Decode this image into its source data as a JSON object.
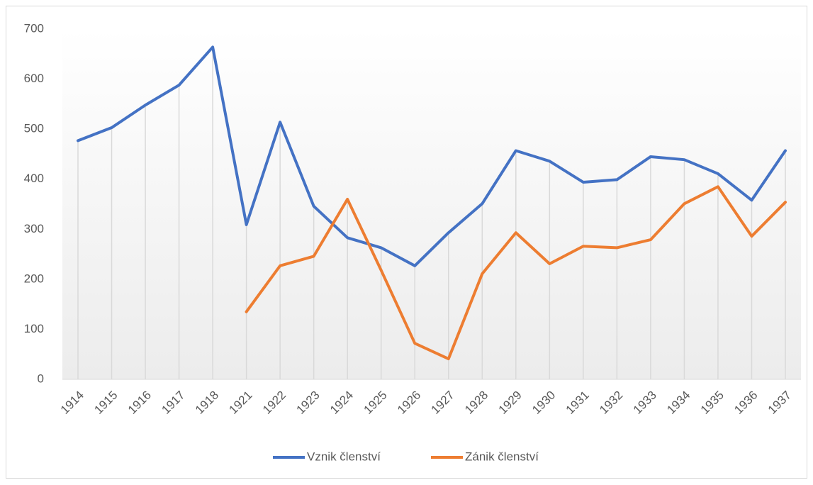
{
  "chart_data": {
    "type": "line",
    "categories": [
      "1914",
      "1915",
      "1916",
      "1917",
      "1918",
      "1921",
      "1922",
      "1923",
      "1924",
      "1925",
      "1926",
      "1927",
      "1928",
      "1929",
      "1930",
      "1931",
      "1932",
      "1933",
      "1934",
      "1935",
      "1936",
      "1937"
    ],
    "series": [
      {
        "name": "Vznik členství",
        "color": "#4472c4",
        "values": [
          477,
          503,
          548,
          588,
          664,
          309,
          514,
          346,
          283,
          263,
          227,
          293,
          351,
          457,
          436,
          394,
          399,
          445,
          439,
          411,
          358,
          457
        ]
      },
      {
        "name": "Zánik členství",
        "color": "#ed7d31",
        "values": [
          null,
          null,
          null,
          null,
          null,
          135,
          227,
          246,
          360,
          218,
          72,
          41,
          211,
          293,
          231,
          266,
          263,
          279,
          351,
          385,
          286,
          354
        ]
      }
    ],
    "ylim": [
      0,
      700
    ],
    "yticks": [
      0,
      100,
      200,
      300,
      400,
      500,
      600,
      700
    ],
    "legend": "bottom",
    "drop_lines": true
  }
}
